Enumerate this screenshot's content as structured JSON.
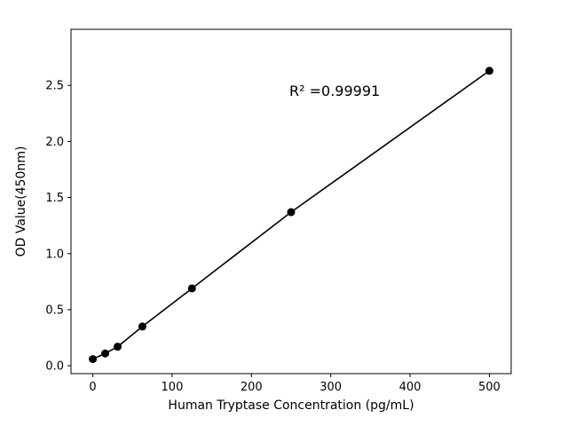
{
  "chart_data": {
    "type": "scatter",
    "xlabel": "Human Tryptase Concentration (pg/mL)",
    "ylabel": "OD Value(450nm)",
    "annotation": "R² =0.99991",
    "x": [
      0,
      15.6,
      31.25,
      62.5,
      125,
      250,
      500
    ],
    "y": [
      0.06,
      0.11,
      0.17,
      0.35,
      0.69,
      1.37,
      2.63
    ],
    "line": true,
    "marker_color": "#000000",
    "line_color": "#000000",
    "background_color": "#ffffff",
    "xlim": [
      -27.5,
      527.5
    ],
    "ylim": [
      -0.07,
      3.0
    ],
    "xticks": [
      0,
      100,
      200,
      300,
      400,
      500
    ],
    "xtick_labels": [
      "0",
      "100",
      "200",
      "300",
      "400",
      "500"
    ],
    "yticks": [
      0.0,
      0.5,
      1.0,
      1.5,
      2.0,
      2.5
    ],
    "ytick_labels": [
      "0.0",
      "0.5",
      "1.0",
      "1.5",
      "2.0",
      "2.5"
    ],
    "grid": false,
    "legend": "none"
  }
}
